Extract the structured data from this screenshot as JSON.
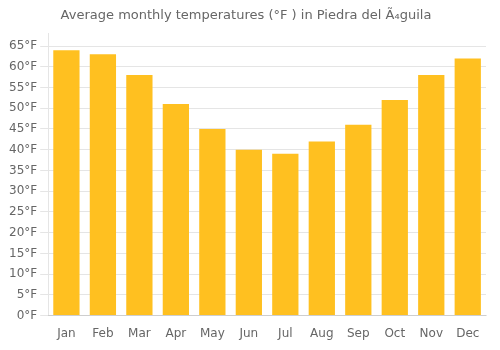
{
  "chart_data": {
    "type": "bar",
    "title": "Average monthly temperatures (°F ) in Piedra del Ã₄guila",
    "categories": [
      "Jan",
      "Feb",
      "Mar",
      "Apr",
      "May",
      "Jun",
      "Jul",
      "Aug",
      "Sep",
      "Oct",
      "Nov",
      "Dec"
    ],
    "values": [
      64,
      63,
      58,
      51,
      45,
      40,
      39,
      42,
      46,
      52,
      58,
      62
    ],
    "color": "#FFC020",
    "ylim": [
      0,
      68
    ],
    "yticks": [
      {
        "value": 0,
        "label": "0°F"
      },
      {
        "value": 5,
        "label": "5°F"
      },
      {
        "value": 10,
        "label": "10°F"
      },
      {
        "value": 15,
        "label": "15°F"
      },
      {
        "value": 20,
        "label": "20°F"
      },
      {
        "value": 25,
        "label": "25°F"
      },
      {
        "value": 30,
        "label": "30°F"
      },
      {
        "value": 35,
        "label": "35°F"
      },
      {
        "value": 40,
        "label": "40°F"
      },
      {
        "value": 45,
        "label": "45°F"
      },
      {
        "value": 50,
        "label": "50°F"
      },
      {
        "value": 55,
        "label": "55°F"
      },
      {
        "value": 60,
        "label": "60°F"
      },
      {
        "value": 65,
        "label": "65°F"
      }
    ],
    "grid": true
  }
}
